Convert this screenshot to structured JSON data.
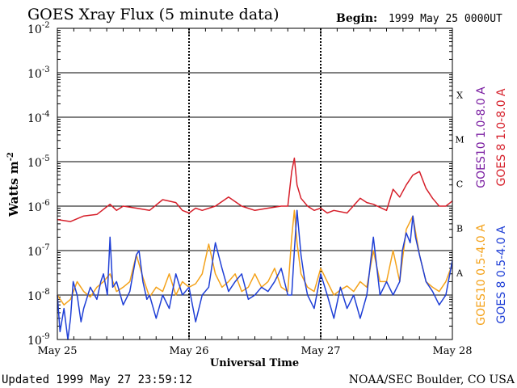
{
  "chart_data": {
    "type": "line",
    "title": "GOES Xray Flux (5 minute data)",
    "begin_label": "Begin:",
    "begin_value": "1999 May 25 0000UT",
    "xlabel": "Universal Time",
    "ylabel": "Watts m",
    "ylabel_sup": "-2",
    "x_ticks": [
      "May 25",
      "May 26",
      "May 27",
      "May 28"
    ],
    "xlim": [
      0,
      3
    ],
    "x_units": "days since 1999 May 25 0000UT",
    "ylim": [
      1e-09,
      0.01
    ],
    "yscale": "log",
    "y_tick_exponents": [
      "-9",
      "-8",
      "-7",
      "-6",
      "-5",
      "-4",
      "-3",
      "-2"
    ],
    "flare_classes": [
      "A",
      "B",
      "C",
      "M",
      "X"
    ],
    "grid": true,
    "legend": [
      {
        "text": "GOES10 1.0-8.0 A",
        "color": "#7b1fa2"
      },
      {
        "text": "GOES 8 1.0-8.0 A",
        "color": "#d61f2a"
      },
      {
        "text": "GOES10 0.5-4.0 A",
        "color": "#f4a21a"
      },
      {
        "text": "GOES 8 0.5-4.0 A",
        "color": "#1f3fd6"
      }
    ],
    "series": [
      {
        "name": "GOES 8 1.0-8.0 A",
        "color": "#d61f2a",
        "x": [
          0.0,
          0.1,
          0.2,
          0.3,
          0.4,
          0.45,
          0.5,
          0.6,
          0.7,
          0.8,
          0.9,
          0.95,
          1.0,
          1.05,
          1.1,
          1.2,
          1.3,
          1.4,
          1.5,
          1.6,
          1.7,
          1.75,
          1.78,
          1.8,
          1.82,
          1.85,
          1.9,
          1.95,
          2.0,
          2.05,
          2.1,
          2.2,
          2.3,
          2.35,
          2.4,
          2.5,
          2.55,
          2.6,
          2.65,
          2.7,
          2.75,
          2.8,
          2.85,
          2.9,
          2.95,
          3.0
        ],
        "y": [
          5e-07,
          4.5e-07,
          6e-07,
          6.5e-07,
          1.1e-06,
          8e-07,
          1e-06,
          9e-07,
          8e-07,
          1.4e-06,
          1.2e-06,
          8e-07,
          7e-07,
          9e-07,
          8e-07,
          1e-06,
          1.6e-06,
          1e-06,
          8e-07,
          9e-07,
          1e-06,
          1e-06,
          6e-06,
          1.2e-05,
          3e-06,
          1.5e-06,
          1e-06,
          8e-07,
          9e-07,
          7e-07,
          8e-07,
          7e-07,
          1.5e-06,
          1.2e-06,
          1.1e-06,
          8e-07,
          2.4e-06,
          1.6e-06,
          3e-06,
          5e-06,
          6e-06,
          2.5e-06,
          1.5e-06,
          1e-06,
          1e-06,
          1.3e-06
        ]
      },
      {
        "name": "GOES10 0.5-4.0 A",
        "color": "#f4a21a",
        "x": [
          0.0,
          0.05,
          0.1,
          0.15,
          0.2,
          0.25,
          0.3,
          0.35,
          0.4,
          0.45,
          0.5,
          0.55,
          0.6,
          0.65,
          0.7,
          0.75,
          0.8,
          0.85,
          0.9,
          0.95,
          1.0,
          1.05,
          1.1,
          1.15,
          1.2,
          1.25,
          1.3,
          1.35,
          1.4,
          1.45,
          1.5,
          1.55,
          1.6,
          1.65,
          1.7,
          1.75,
          1.78,
          1.8,
          1.82,
          1.85,
          1.9,
          1.95,
          2.0,
          2.05,
          2.1,
          2.15,
          2.2,
          2.25,
          2.3,
          2.35,
          2.4,
          2.45,
          2.5,
          2.55,
          2.6,
          2.65,
          2.7,
          2.75,
          2.8,
          2.85,
          2.9,
          2.95,
          3.0
        ],
        "y": [
          1e-08,
          6e-09,
          8e-09,
          2e-08,
          1.2e-08,
          9e-09,
          1.5e-08,
          2e-08,
          3e-08,
          1.2e-08,
          1.5e-08,
          2e-08,
          8e-08,
          2.5e-08,
          9e-09,
          1.5e-08,
          1.2e-08,
          3e-08,
          1e-08,
          2e-08,
          1.5e-08,
          1.8e-08,
          3e-08,
          1.4e-07,
          3e-08,
          1.5e-08,
          2e-08,
          3e-08,
          1.2e-08,
          1.5e-08,
          3e-08,
          1.5e-08,
          2e-08,
          4e-08,
          1.5e-08,
          1.2e-08,
          2e-07,
          8e-07,
          1.5e-07,
          3e-08,
          1.5e-08,
          1.2e-08,
          4e-08,
          2e-08,
          1e-08,
          1.3e-08,
          1.6e-08,
          1.2e-08,
          2e-08,
          1.5e-08,
          1e-07,
          2e-08,
          2e-08,
          1e-07,
          2e-08,
          3e-07,
          6e-07,
          8e-08,
          2e-08,
          1.5e-08,
          1.2e-08,
          2e-08,
          5e-08
        ]
      },
      {
        "name": "GOES 8 0.5-4.0 A",
        "color": "#1f3fd6",
        "x": [
          0.0,
          0.02,
          0.05,
          0.08,
          0.1,
          0.12,
          0.15,
          0.18,
          0.2,
          0.25,
          0.3,
          0.33,
          0.35,
          0.38,
          0.4,
          0.42,
          0.45,
          0.5,
          0.55,
          0.6,
          0.62,
          0.65,
          0.68,
          0.7,
          0.75,
          0.8,
          0.85,
          0.9,
          0.95,
          1.0,
          1.05,
          1.1,
          1.15,
          1.2,
          1.25,
          1.3,
          1.35,
          1.4,
          1.45,
          1.5,
          1.55,
          1.6,
          1.65,
          1.7,
          1.75,
          1.78,
          1.8,
          1.82,
          1.85,
          1.88,
          1.9,
          1.95,
          2.0,
          2.05,
          2.1,
          2.15,
          2.2,
          2.25,
          2.3,
          2.35,
          2.4,
          2.45,
          2.5,
          2.55,
          2.6,
          2.62,
          2.65,
          2.68,
          2.7,
          2.72,
          2.75,
          2.8,
          2.85,
          2.9,
          2.95,
          3.0
        ],
        "y": [
          1e-08,
          1.5e-09,
          5e-09,
          1e-09,
          3e-09,
          2e-08,
          1e-08,
          2.5e-09,
          5e-09,
          1.5e-08,
          8e-09,
          2e-08,
          3e-08,
          1e-08,
          2e-07,
          1.5e-08,
          2e-08,
          6e-09,
          1.2e-08,
          8e-08,
          1e-07,
          2e-08,
          8e-09,
          1e-08,
          3e-09,
          1e-08,
          5e-09,
          3e-08,
          1e-08,
          1.5e-08,
          2.5e-09,
          1e-08,
          1.5e-08,
          1.5e-07,
          4e-08,
          1.2e-08,
          2e-08,
          3e-08,
          8e-09,
          1e-08,
          1.5e-08,
          1.2e-08,
          2e-08,
          4e-08,
          1e-08,
          1e-08,
          1e-07,
          8e-07,
          8e-08,
          2e-08,
          1e-08,
          5e-09,
          3e-08,
          1e-08,
          3e-09,
          1.5e-08,
          5e-09,
          1e-08,
          3e-09,
          1e-08,
          2e-07,
          1e-08,
          2e-08,
          1e-08,
          2e-08,
          1e-07,
          2.5e-07,
          1.5e-07,
          6e-07,
          2e-07,
          8e-08,
          2e-08,
          1.2e-08,
          6e-09,
          1e-08,
          6e-08
        ]
      }
    ]
  },
  "footer": {
    "updated": "Updated 1999 May 27 23:59:12",
    "credit": "NOAA/SEC Boulder, CO USA"
  }
}
